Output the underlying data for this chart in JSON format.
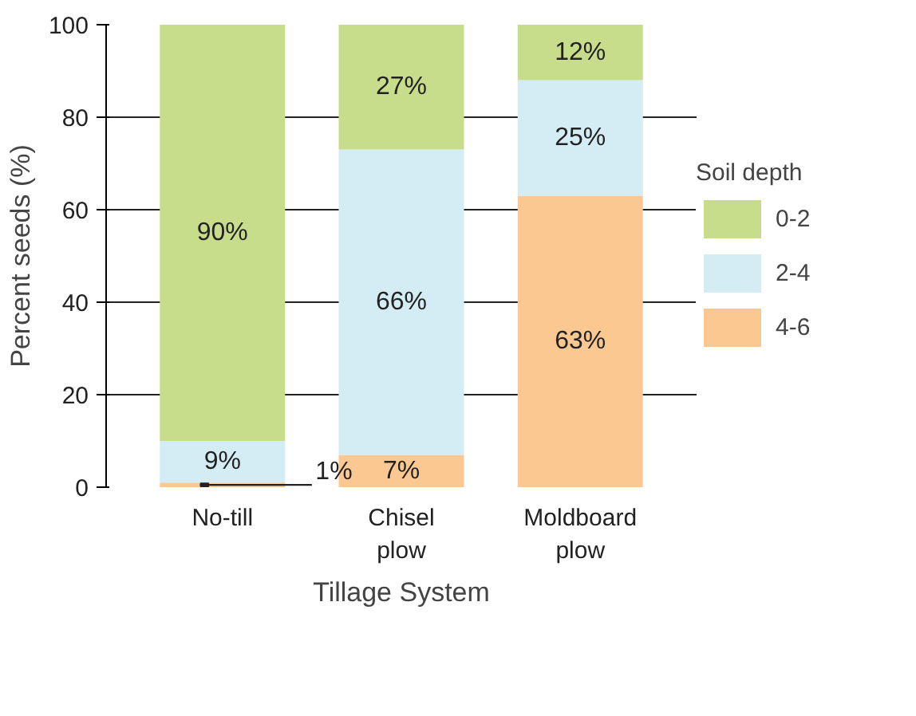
{
  "chart_data": {
    "type": "bar",
    "stacked": true,
    "xlabel": "Tillage System",
    "ylabel": "Percent seeds (%)",
    "legend_title": "Soil depth",
    "categories": [
      "No-till",
      "Chisel plow",
      "Moldboard plow"
    ],
    "series": [
      {
        "name": "4-6",
        "color": "#fcc892",
        "values": [
          1,
          7,
          63
        ],
        "value_labels": [
          "1%",
          "7%",
          "63%"
        ]
      },
      {
        "name": "2-4",
        "color": "#d4ecf3",
        "values": [
          9,
          66,
          25
        ],
        "value_labels": [
          "9%",
          "66%",
          "25%"
        ]
      },
      {
        "name": "0-2",
        "color": "#c8dd8c",
        "values": [
          90,
          27,
          12
        ],
        "value_labels": [
          "90%",
          "27%",
          "12%"
        ]
      }
    ],
    "ylim": [
      0,
      100
    ],
    "yticks": [
      0,
      20,
      40,
      60,
      80,
      100
    ],
    "grid": "y",
    "legend": "right"
  }
}
